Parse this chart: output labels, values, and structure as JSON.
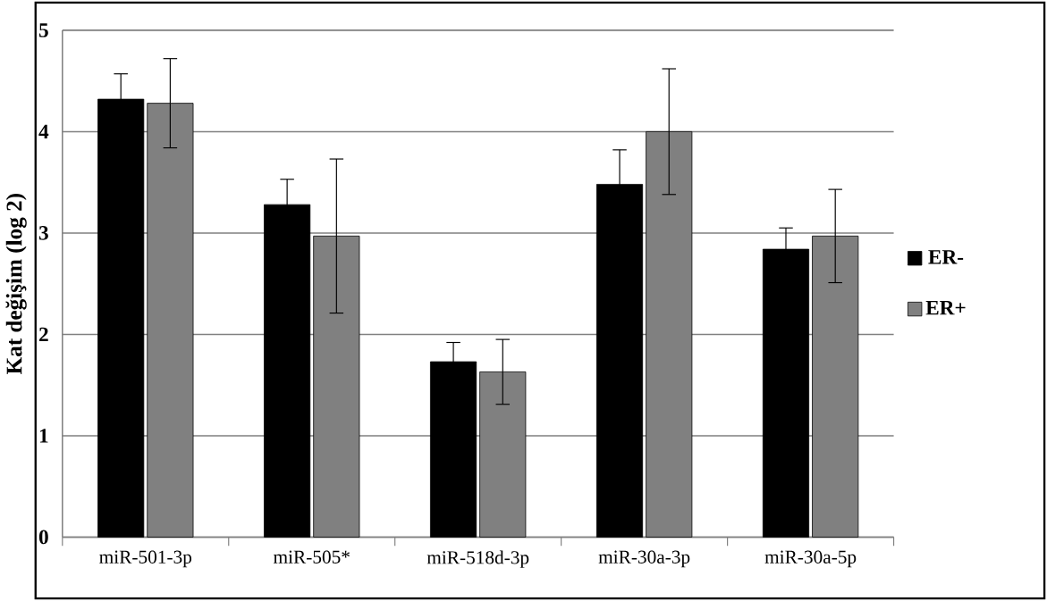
{
  "chart_data": {
    "type": "bar",
    "ylabel": "Kat değişim (log 2)",
    "categories": [
      "miR-501-3p",
      "miR-505*",
      "miR-518d-3p",
      "miR-30a-3p",
      "miR-30a-5p"
    ],
    "series": [
      {
        "name": "ER-",
        "color": "#000000",
        "values": [
          4.32,
          3.28,
          1.73,
          3.48,
          2.84
        ],
        "errors": [
          0.25,
          0.25,
          0.19,
          0.34,
          0.21
        ]
      },
      {
        "name": "ER+",
        "color": "#808080",
        "values": [
          4.28,
          2.97,
          1.63,
          4.0,
          2.97
        ],
        "errors": [
          0.44,
          0.76,
          0.32,
          0.62,
          0.46
        ]
      }
    ],
    "ylim": [
      0,
      5
    ],
    "yticks": [
      0,
      1,
      2,
      3,
      4,
      5
    ],
    "grid": "y",
    "legend": "right"
  }
}
